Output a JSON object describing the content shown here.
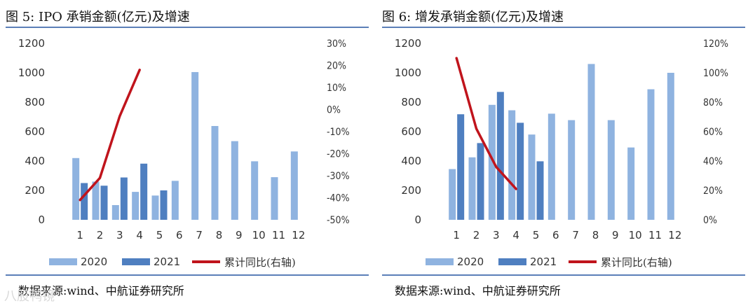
{
  "chart_data": [
    {
      "type": "bar",
      "title": "图 5: IPO 承销金额(亿元)及增速",
      "categories": [
        "1",
        "2",
        "3",
        "4",
        "5",
        "6",
        "7",
        "8",
        "9",
        "10",
        "11",
        "12"
      ],
      "series": [
        {
          "name": "2020",
          "kind": "bar",
          "color": "#8fb3e0",
          "values": [
            420,
            260,
            100,
            190,
            165,
            265,
            1005,
            638,
            535,
            398,
            290,
            465
          ]
        },
        {
          "name": "2021",
          "kind": "bar",
          "color": "#4f7fc0",
          "values": [
            250,
            232,
            288,
            382,
            200,
            null,
            null,
            null,
            null,
            null,
            null,
            null
          ]
        },
        {
          "name": "累计同比(右轴)",
          "kind": "line",
          "axis": "right",
          "color": "#c0141c",
          "values": [
            -41,
            -31,
            -3,
            18,
            null,
            null,
            null,
            null,
            null,
            null,
            null,
            null
          ]
        }
      ],
      "yleft": {
        "min": 0,
        "max": 1200,
        "ticks": [
          "0",
          "200",
          "400",
          "600",
          "800",
          "1000",
          "1200"
        ]
      },
      "yright": {
        "min": -50,
        "max": 30,
        "ticks": [
          "-50%",
          "-40%",
          "-30%",
          "-20%",
          "-10%",
          "0%",
          "10%",
          "20%",
          "30%"
        ]
      },
      "legend_position": "bottom",
      "grid": false
    },
    {
      "type": "bar",
      "title": "图 6: 增发承销金额(亿元)及增速",
      "categories": [
        "1",
        "2",
        "3",
        "4",
        "5",
        "6",
        "7",
        "8",
        "9",
        "10",
        "11",
        "12"
      ],
      "series": [
        {
          "name": "2020",
          "kind": "bar",
          "color": "#8fb3e0",
          "values": [
            345,
            425,
            782,
            745,
            580,
            722,
            678,
            1060,
            678,
            492,
            888,
            1000
          ]
        },
        {
          "name": "2021",
          "kind": "bar",
          "color": "#4f7fc0",
          "values": [
            718,
            522,
            870,
            660,
            398,
            null,
            null,
            null,
            null,
            null,
            null,
            null
          ]
        },
        {
          "name": "累计同比(右轴)",
          "kind": "line",
          "axis": "right",
          "color": "#c0141c",
          "values": [
            110,
            62,
            36,
            21,
            null,
            null,
            null,
            null,
            null,
            null,
            null,
            null
          ]
        }
      ],
      "yleft": {
        "min": 0,
        "max": 1200,
        "ticks": [
          "0",
          "200",
          "400",
          "600",
          "800",
          "1000",
          "1200"
        ]
      },
      "yright": {
        "min": 0,
        "max": 120,
        "ticks": [
          "0%",
          "20%",
          "40%",
          "60%",
          "80%",
          "100%",
          "120%"
        ]
      },
      "legend_position": "bottom",
      "grid": false
    }
  ],
  "panels": [
    {
      "title": "图 5: IPO 承销金额(亿元)及增速",
      "source": "数据来源:wind、中航证券研究所"
    },
    {
      "title": "图 6: 增发承销金额(亿元)及增速",
      "source": "数据来源:wind、中航证券研究所"
    }
  ],
  "legend": {
    "bar2020": "2020",
    "bar2021": "2021",
    "line": "累计同比(右轴)"
  },
  "watermark": "八股鸭镜"
}
